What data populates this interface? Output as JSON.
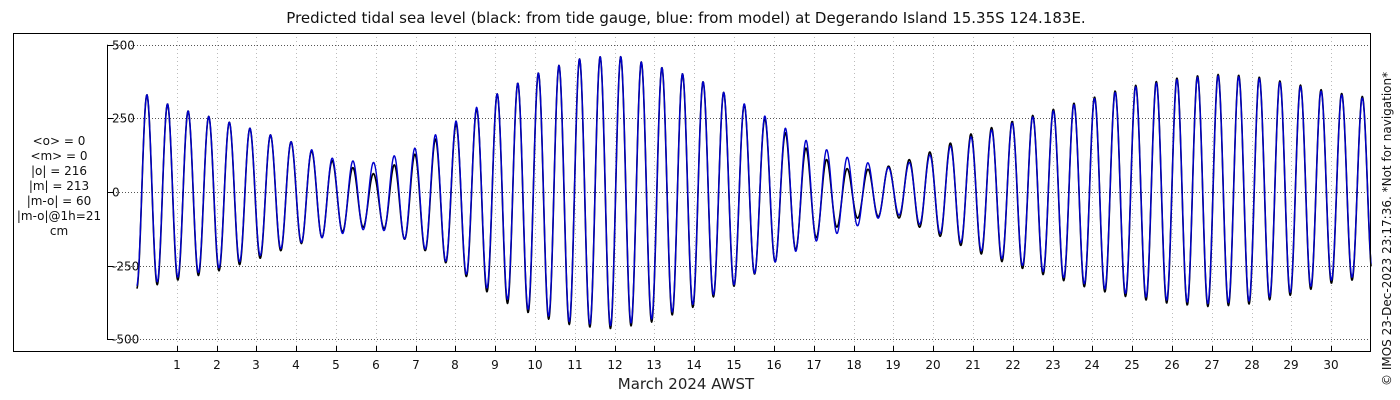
{
  "chart_data": {
    "type": "line",
    "title": "Predicted tidal sea level (black: from tide gauge, blue: from model) at Degerando Island 15.35S 124.183E.",
    "xlabel": "March 2024 AWST",
    "ylabel": "",
    "xlim": [
      0,
      31
    ],
    "ylim": [
      -540,
      540
    ],
    "x_ticks": [
      1,
      2,
      3,
      4,
      5,
      6,
      7,
      8,
      9,
      10,
      11,
      12,
      13,
      14,
      15,
      16,
      17,
      18,
      19,
      20,
      21,
      22,
      23,
      24,
      25,
      26,
      27,
      28,
      29,
      30
    ],
    "x_tick_labels": [
      "1",
      "2",
      "3",
      "4",
      "5",
      "6",
      "7",
      "8",
      "9",
      "10",
      "11",
      "12",
      "13",
      "14",
      "15",
      "16",
      "17",
      "18",
      "19",
      "20",
      "21",
      "22",
      "23",
      "24",
      "25",
      "26",
      "27",
      "28",
      "29",
      "30"
    ],
    "y_ticks": [
      -500,
      -250,
      0,
      250,
      500
    ],
    "y_tick_labels": [
      "-500",
      "-250",
      "0",
      "250",
      "500"
    ],
    "grid": true,
    "series": [
      {
        "name": "from tide gauge",
        "color": "#000000",
        "sampling": "semidiurnal high/low envelope, one value per day",
        "day": [
          0,
          1,
          2,
          3,
          4,
          5,
          6,
          7,
          8,
          9,
          10,
          11,
          12,
          13,
          14,
          15,
          16,
          17,
          18,
          19,
          20,
          21,
          22,
          23,
          24,
          25,
          26,
          27,
          28,
          29,
          30,
          31
        ],
        "high_water": [
          345,
          285,
          250,
          210,
          165,
          100,
          60,
          130,
          230,
          330,
          400,
          450,
          465,
          430,
          390,
          320,
          230,
          130,
          70,
          90,
          140,
          200,
          240,
          280,
          320,
          360,
          385,
          400,
          395,
          370,
          340,
          320
        ],
        "low_water": [
          -330,
          -300,
          -270,
          -230,
          -180,
          -140,
          -110,
          -180,
          -260,
          -360,
          -420,
          -455,
          -465,
          -440,
          -390,
          -320,
          -240,
          -160,
          -90,
          -80,
          -140,
          -200,
          -250,
          -290,
          -330,
          -360,
          -380,
          -390,
          -380,
          -350,
          -310,
          -290
        ]
      },
      {
        "name": "from model",
        "color": "#0000cc",
        "sampling": "semidiurnal high/low envelope, one value per day",
        "day": [
          0,
          1,
          2,
          3,
          4,
          5,
          6,
          7,
          8,
          9,
          10,
          11,
          12,
          13,
          14,
          15,
          16,
          17,
          18,
          19,
          20,
          21,
          22,
          23,
          24,
          25,
          26,
          27,
          28,
          29,
          30,
          31
        ],
        "high_water": [
          345,
          285,
          250,
          210,
          165,
          110,
          100,
          150,
          240,
          330,
          400,
          450,
          465,
          430,
          390,
          320,
          240,
          160,
          110,
          80,
          130,
          190,
          235,
          275,
          315,
          355,
          380,
          395,
          390,
          365,
          335,
          315
        ],
        "low_water": [
          -320,
          -290,
          -260,
          -220,
          -175,
          -145,
          -120,
          -175,
          -255,
          -345,
          -410,
          -445,
          -455,
          -430,
          -380,
          -315,
          -240,
          -170,
          -120,
          -70,
          -130,
          -190,
          -240,
          -280,
          -320,
          -350,
          -370,
          -380,
          -370,
          -340,
          -300,
          -280
        ]
      }
    ]
  },
  "stats": {
    "lines": [
      "<o> = 0",
      "<m> = 0",
      "|o| = 216",
      "|m| = 213",
      "|m-o| = 60",
      "|m-o|@1h=21",
      "cm"
    ]
  },
  "credit": "© IMOS 23-Dec-2023 23:17:36. *Not for navigation*"
}
